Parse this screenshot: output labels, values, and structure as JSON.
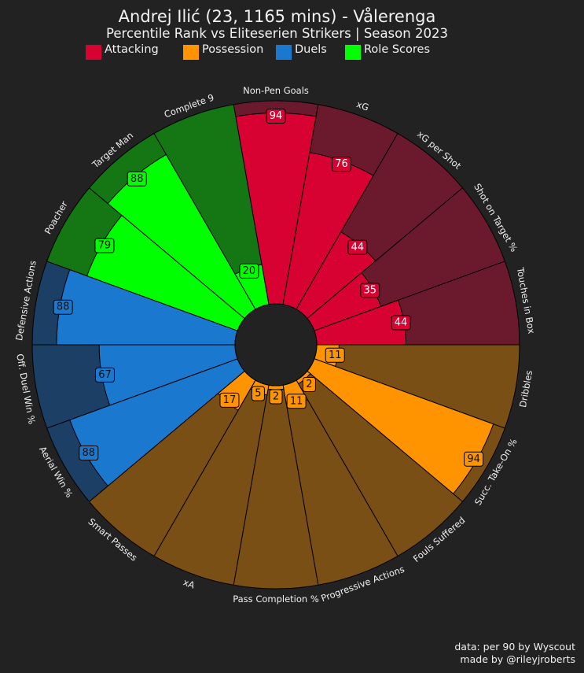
{
  "header": {
    "title": "Andrej Ilić (23, 1165 mins) - Vålerenga",
    "subtitle": "Percentile Rank vs Eliteserien Strikers | Season 2023"
  },
  "legend": [
    {
      "label": "Attacking",
      "color": "#d70232"
    },
    {
      "label": "Possession",
      "color": "#ff9300"
    },
    {
      "label": "Duels",
      "color": "#1a78cf"
    },
    {
      "label": "Role Scores",
      "color": "#00ff00"
    }
  ],
  "footer": {
    "line1": "data: per 90 by Wyscout",
    "line2": "made by @rileyjroberts"
  },
  "chart_data": {
    "type": "pie",
    "subtype": "polar-bar",
    "range": [
      0,
      100
    ],
    "params": [
      {
        "name": "Non-Pen Goals",
        "value": 94,
        "group": "Attacking"
      },
      {
        "name": "xG",
        "value": 76,
        "group": "Attacking"
      },
      {
        "name": "xG per Shot",
        "value": 44,
        "group": "Attacking"
      },
      {
        "name": "Shot on Target %",
        "value": 35,
        "group": "Attacking"
      },
      {
        "name": "Touches in Box",
        "value": 44,
        "group": "Attacking"
      },
      {
        "name": "Dribbles",
        "value": 11,
        "group": "Possession"
      },
      {
        "name": "Succ. Take-On %",
        "value": 94,
        "group": "Possession"
      },
      {
        "name": "Fouls Suffered",
        "value": 2,
        "group": "Possession"
      },
      {
        "name": "Progressive Actions",
        "value": 11,
        "group": "Possession"
      },
      {
        "name": "Pass Completion %",
        "value": 2,
        "group": "Possession"
      },
      {
        "name": "xA",
        "value": 5,
        "group": "Possession"
      },
      {
        "name": "Smart Passes",
        "value": 17,
        "group": "Possession"
      },
      {
        "name": "Aerial Win %",
        "value": 88,
        "group": "Duels"
      },
      {
        "name": "Off. Duel Win %",
        "value": 67,
        "group": "Duels"
      },
      {
        "name": "Defensive Actions",
        "value": 88,
        "group": "Duels"
      },
      {
        "name": "Poacher",
        "value": 79,
        "group": "Role Scores"
      },
      {
        "name": "Target Man",
        "value": 88,
        "group": "Role Scores"
      },
      {
        "name": "Complete 9",
        "value": 20,
        "group": "Role Scores"
      }
    ],
    "colors": {
      "Attacking": {
        "fill": "#d70232",
        "background": "#6b1a2e"
      },
      "Possession": {
        "fill": "#ff9300",
        "background": "#7a4f15"
      },
      "Duels": {
        "fill": "#1a78cf",
        "background": "#1c3f66"
      },
      "Role Scores": {
        "fill": "#00ff00",
        "background": "#157614"
      }
    },
    "center_color": "#222222"
  }
}
